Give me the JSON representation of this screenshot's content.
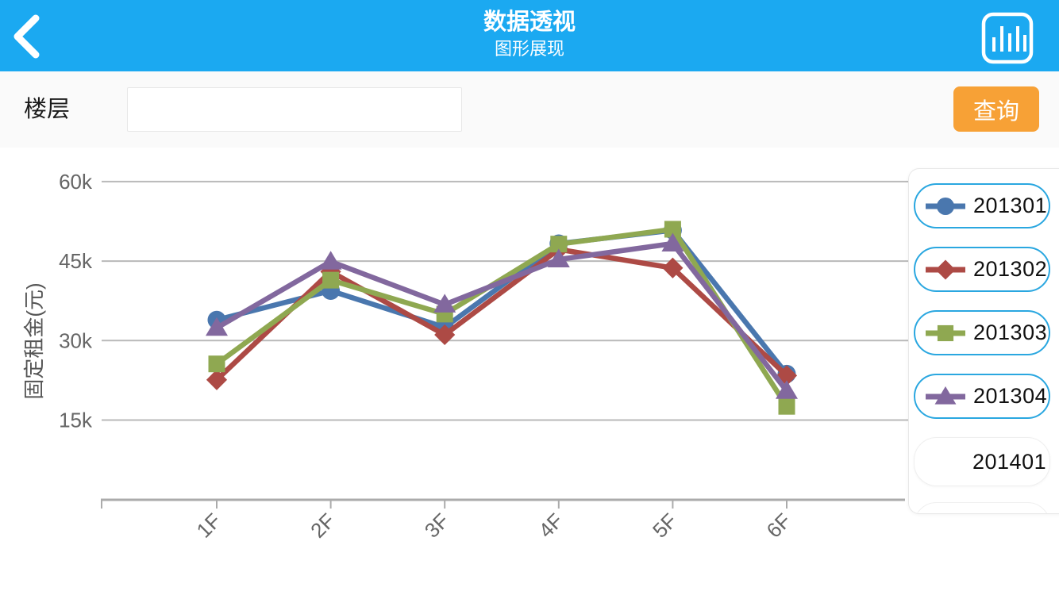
{
  "header": {
    "title": "数据透视",
    "subtitle": "图形展现",
    "back_icon": "chevron-left",
    "toolbar_icon": "bar-chart"
  },
  "filter": {
    "label": "楼层",
    "input_value": "",
    "input_placeholder": "",
    "query_button_label": "查询"
  },
  "colors": {
    "header_bg": "#1BA9F1",
    "query_button": "#F7A136",
    "legend_selected_border": "#2AA7E0",
    "grid_line": "#b9b9b9",
    "axis_line": "#ababab",
    "tick_text": "#666666"
  },
  "chart_data": {
    "type": "line",
    "title": "",
    "xlabel": "",
    "ylabel": "固定租金(元)",
    "categories": [
      "1F",
      "2F",
      "3F",
      "4F",
      "5F",
      "6F"
    ],
    "unit": "k (千元)",
    "yticks": [
      "15k",
      "30k",
      "45k",
      "60k"
    ],
    "ytick_values": [
      15,
      30,
      45,
      60
    ],
    "ylim": [
      0,
      65
    ],
    "grid": true,
    "legend_position": "right",
    "series": [
      {
        "name": "201301",
        "color": "#4A77AE",
        "marker": "circle",
        "values": [
          33.9,
          39.4,
          32.5,
          48.3,
          50.8,
          23.7
        ]
      },
      {
        "name": "201302",
        "color": "#AD4A45",
        "marker": "diamond",
        "values": [
          22.6,
          43.0,
          31.1,
          47.2,
          43.7,
          23.4
        ]
      },
      {
        "name": "201303",
        "color": "#8FA851",
        "marker": "square",
        "values": [
          25.6,
          41.4,
          35.0,
          48.2,
          51.0,
          17.6
        ]
      },
      {
        "name": "201304",
        "color": "#82689E",
        "marker": "triangle",
        "values": [
          32.4,
          44.9,
          36.8,
          45.3,
          48.3,
          20.5
        ]
      }
    ]
  },
  "legend": {
    "items": [
      {
        "label": "201301",
        "marker": "circle",
        "color": "#4A77AE",
        "selected": true
      },
      {
        "label": "201302",
        "marker": "diamond",
        "color": "#AD4A45",
        "selected": true
      },
      {
        "label": "201303",
        "marker": "square",
        "color": "#8FA851",
        "selected": true
      },
      {
        "label": "201304",
        "marker": "triangle",
        "color": "#82689E",
        "selected": true
      },
      {
        "label": "201401",
        "marker": "none",
        "color": "",
        "selected": false
      }
    ]
  }
}
